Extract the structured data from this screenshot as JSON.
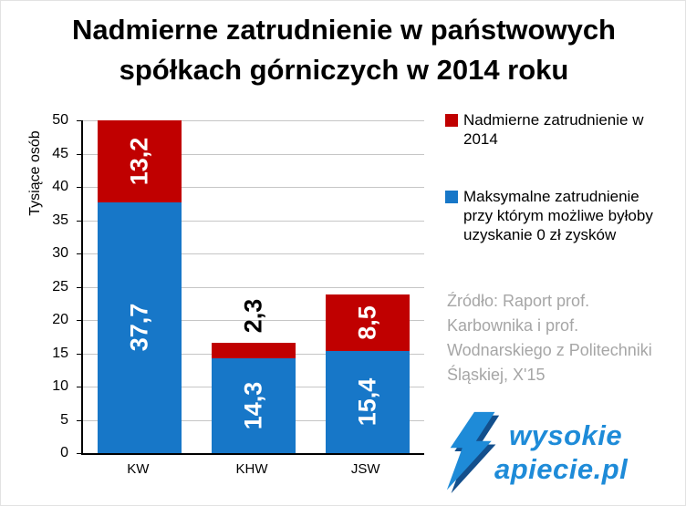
{
  "title": {
    "line1": "Nadmierne zatrudnienie w państwowych",
    "line2": "spółkach górniczych w 2014 roku"
  },
  "chart_data": {
    "type": "bar",
    "stacked": true,
    "title": "Nadmierne zatrudnienie w państwowych spółkach górniczych w 2014 roku",
    "ylabel": "Tysiące osób",
    "xlabel": "",
    "ylim": [
      0,
      50
    ],
    "ytick_step": 5,
    "grid": true,
    "legend_position": "right",
    "categories": [
      "KW",
      "KHW",
      "JSW"
    ],
    "series": [
      {
        "name": "Maksymalne zatrudnienie przy którym możliwe byłoby uzyskanie 0 zł zysków",
        "color": "#1777C8",
        "values": [
          37.7,
          14.3,
          15.4
        ],
        "labels": [
          "37,7",
          "14,3",
          "15,4"
        ]
      },
      {
        "name": "Nadmierne zatrudnienie w 2014",
        "color": "#C00000",
        "values": [
          13.2,
          2.3,
          8.5
        ],
        "labels": [
          "13,2",
          "2,3",
          "8,5"
        ]
      }
    ]
  },
  "legend": [
    {
      "label": "Nadmierne zatrudnienie w 2014",
      "color": "#C00000"
    },
    {
      "label": "Maksymalne zatrudnienie przy którym możliwe byłoby uzyskanie 0 zł zysków",
      "color": "#1777C8"
    }
  ],
  "source": "Źródło: Raport prof. Karbownika i prof. Wodnarskiego z Politechniki Śląskiej, X'15",
  "logo": {
    "line1": "wysokie",
    "line2": "apiecie.pl"
  }
}
